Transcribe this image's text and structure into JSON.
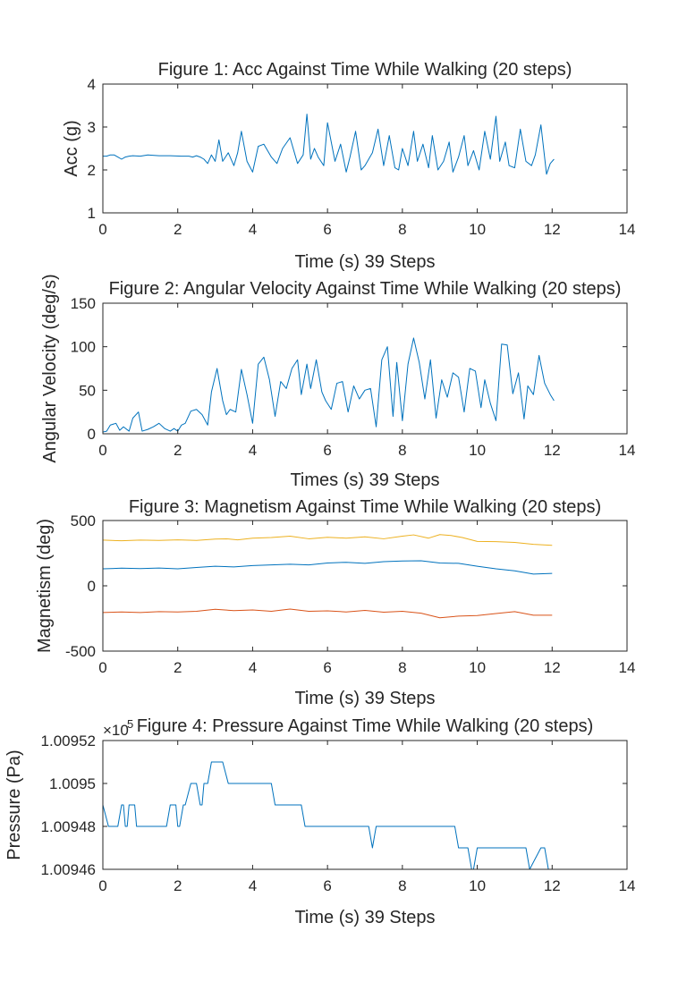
{
  "chart_data": [
    {
      "type": "line",
      "title": "Figure 1: Acc Against Time While Walking (20 steps)",
      "xlabel": "Time (s) 39 Steps",
      "ylabel": "Acc (g)",
      "xlim": [
        0,
        14
      ],
      "ylim": [
        1,
        4
      ],
      "xticks": [
        0,
        2,
        4,
        6,
        8,
        10,
        12,
        14
      ],
      "yticks": [
        1,
        2,
        3,
        4
      ],
      "xtick_labels": [
        "0",
        "2",
        "4",
        "6",
        "8",
        "10",
        "12",
        "14"
      ],
      "ytick_labels": [
        "1",
        "2",
        "3",
        "4"
      ],
      "series": [
        {
          "color": "#0072BD",
          "x": [
            0,
            0.1,
            0.2,
            0.3,
            0.4,
            0.5,
            0.6,
            0.7,
            0.8,
            1.0,
            1.2,
            1.5,
            1.8,
            2.1,
            2.3,
            2.4,
            2.5,
            2.6,
            2.7,
            2.8,
            2.9,
            3.0,
            3.1,
            3.2,
            3.35,
            3.5,
            3.6,
            3.7,
            3.85,
            4.0,
            4.15,
            4.3,
            4.5,
            4.65,
            4.8,
            5.0,
            5.2,
            5.35,
            5.45,
            5.55,
            5.65,
            5.75,
            5.9,
            6.0,
            6.2,
            6.35,
            6.5,
            6.6,
            6.75,
            6.9,
            7.0,
            7.2,
            7.35,
            7.5,
            7.65,
            7.8,
            7.9,
            8.0,
            8.15,
            8.3,
            8.4,
            8.55,
            8.7,
            8.8,
            8.95,
            9.1,
            9.25,
            9.35,
            9.5,
            9.65,
            9.75,
            9.9,
            10.05,
            10.2,
            10.35,
            10.5,
            10.6,
            10.75,
            10.85,
            11.0,
            11.15,
            11.3,
            11.45,
            11.55,
            11.7,
            11.85,
            11.95,
            12.05
          ],
          "y": [
            2.32,
            2.32,
            2.35,
            2.35,
            2.3,
            2.25,
            2.3,
            2.32,
            2.33,
            2.32,
            2.35,
            2.33,
            2.33,
            2.32,
            2.32,
            2.3,
            2.33,
            2.3,
            2.25,
            2.15,
            2.35,
            2.2,
            2.7,
            2.2,
            2.4,
            2.1,
            2.4,
            2.9,
            2.2,
            1.95,
            2.55,
            2.6,
            2.3,
            2.15,
            2.5,
            2.75,
            2.15,
            2.35,
            3.3,
            2.25,
            2.5,
            2.3,
            2.1,
            3.1,
            2.2,
            2.6,
            1.95,
            2.3,
            2.9,
            2.0,
            2.1,
            2.4,
            2.95,
            2.1,
            2.8,
            2.05,
            2.0,
            2.5,
            2.1,
            2.9,
            2.2,
            2.6,
            2.05,
            2.8,
            2.0,
            2.2,
            2.65,
            1.95,
            2.3,
            2.8,
            2.1,
            2.45,
            2.0,
            2.9,
            2.25,
            3.25,
            2.2,
            2.65,
            2.1,
            2.05,
            2.95,
            2.2,
            2.1,
            2.35,
            3.05,
            1.9,
            2.15,
            2.25
          ]
        }
      ]
    },
    {
      "type": "line",
      "title": "Figure 2: Angular Velocity Against Time While Walking (20 steps)",
      "xlabel": "Times (s) 39 Steps",
      "ylabel": "Angular Velocity (deg/s)",
      "xlim": [
        0,
        14
      ],
      "ylim": [
        0,
        150
      ],
      "xticks": [
        0,
        2,
        4,
        6,
        8,
        10,
        12,
        14
      ],
      "yticks": [
        0,
        50,
        100,
        150
      ],
      "xtick_labels": [
        "0",
        "2",
        "4",
        "6",
        "8",
        "10",
        "12",
        "14"
      ],
      "ytick_labels": [
        "0",
        "50",
        "100",
        "150"
      ],
      "series": [
        {
          "color": "#0072BD",
          "x": [
            0,
            0.1,
            0.2,
            0.35,
            0.45,
            0.55,
            0.7,
            0.8,
            0.95,
            1.05,
            1.2,
            1.35,
            1.5,
            1.65,
            1.8,
            1.9,
            2.0,
            2.1,
            2.2,
            2.35,
            2.5,
            2.65,
            2.8,
            2.9,
            3.05,
            3.2,
            3.3,
            3.4,
            3.55,
            3.7,
            3.85,
            4.0,
            4.15,
            4.3,
            4.45,
            4.6,
            4.75,
            4.9,
            5.05,
            5.2,
            5.3,
            5.45,
            5.55,
            5.7,
            5.85,
            5.95,
            6.1,
            6.25,
            6.4,
            6.55,
            6.7,
            6.85,
            7.0,
            7.15,
            7.3,
            7.45,
            7.6,
            7.75,
            7.85,
            8.0,
            8.15,
            8.3,
            8.45,
            8.6,
            8.75,
            8.9,
            9.05,
            9.2,
            9.35,
            9.5,
            9.65,
            9.8,
            9.95,
            10.1,
            10.2,
            10.35,
            10.5,
            10.65,
            10.8,
            10.95,
            11.1,
            11.25,
            11.35,
            11.5,
            11.65,
            11.8,
            11.95,
            12.05
          ],
          "y": [
            2,
            3,
            10,
            12,
            4,
            8,
            3,
            18,
            25,
            3,
            5,
            8,
            12,
            6,
            3,
            6,
            3,
            10,
            12,
            26,
            28,
            22,
            10,
            48,
            75,
            38,
            22,
            28,
            25,
            74,
            45,
            12,
            80,
            88,
            62,
            20,
            60,
            52,
            75,
            85,
            45,
            80,
            52,
            85,
            48,
            38,
            28,
            58,
            60,
            25,
            55,
            40,
            50,
            52,
            8,
            85,
            100,
            20,
            82,
            15,
            80,
            110,
            82,
            40,
            85,
            18,
            62,
            42,
            70,
            65,
            25,
            75,
            72,
            30,
            62,
            35,
            15,
            103,
            102,
            46,
            70,
            17,
            55,
            45,
            90,
            58,
            45,
            38
          ],
          "x_tail_note": ""
        }
      ]
    },
    {
      "type": "line",
      "title": "Figure 3: Magnetism Against Time While Walking (20 steps)",
      "xlabel": "Time (s) 39 Steps",
      "ylabel": "Magnetism (deg)",
      "xlim": [
        0,
        14
      ],
      "ylim": [
        -500,
        500
      ],
      "xticks": [
        0,
        2,
        4,
        6,
        8,
        10,
        12,
        14
      ],
      "yticks": [
        -500,
        0,
        500
      ],
      "xtick_labels": [
        "0",
        "2",
        "4",
        "6",
        "8",
        "10",
        "12",
        "14"
      ],
      "ytick_labels": [
        "-500",
        "0",
        "500"
      ],
      "series": [
        {
          "color": "#EDB120",
          "x": [
            0,
            0.5,
            1.0,
            1.5,
            2.0,
            2.5,
            3.0,
            3.3,
            3.6,
            4.0,
            4.5,
            5.0,
            5.5,
            6.0,
            6.5,
            7.0,
            7.5,
            8.0,
            8.3,
            8.7,
            9.0,
            9.3,
            9.6,
            10.0,
            10.5,
            11.0,
            11.5,
            12.0
          ],
          "y": [
            350,
            345,
            350,
            348,
            352,
            348,
            358,
            360,
            352,
            365,
            370,
            380,
            360,
            372,
            365,
            375,
            360,
            380,
            390,
            365,
            392,
            385,
            370,
            340,
            338,
            332,
            318,
            310
          ]
        },
        {
          "color": "#0072BD",
          "x": [
            0,
            0.5,
            1.0,
            1.5,
            2.0,
            2.5,
            3.0,
            3.5,
            4.0,
            4.5,
            5.0,
            5.5,
            6.0,
            6.5,
            7.0,
            7.5,
            8.0,
            8.5,
            9.0,
            9.5,
            10.0,
            10.5,
            11.0,
            11.5,
            12.0
          ],
          "y": [
            130,
            135,
            132,
            136,
            130,
            140,
            150,
            145,
            155,
            160,
            165,
            160,
            175,
            180,
            172,
            185,
            190,
            192,
            175,
            172,
            150,
            130,
            115,
            90,
            95
          ]
        },
        {
          "color": "#D95319",
          "x": [
            0,
            0.5,
            1.0,
            1.5,
            2.0,
            2.5,
            3.0,
            3.5,
            4.0,
            4.5,
            5.0,
            5.5,
            6.0,
            6.5,
            7.0,
            7.5,
            8.0,
            8.5,
            9.0,
            9.5,
            10.0,
            10.5,
            11.0,
            11.5,
            12.0
          ],
          "y": [
            -205,
            -200,
            -205,
            -198,
            -200,
            -195,
            -180,
            -190,
            -185,
            -195,
            -178,
            -195,
            -192,
            -200,
            -188,
            -202,
            -195,
            -210,
            -245,
            -232,
            -228,
            -212,
            -198,
            -225,
            -225
          ]
        }
      ]
    },
    {
      "type": "line",
      "title": "Figure 4: Pressure Against Time While Walking (20 steps)",
      "xlabel": "Time (s) 39 Steps",
      "ylabel": "Pressure (Pa)",
      "xlim": [
        0,
        14
      ],
      "ylim": [
        1.00946,
        1.00952
      ],
      "exponent_label": "×10",
      "exponent_power": "5",
      "xticks": [
        0,
        2,
        4,
        6,
        8,
        10,
        12,
        14
      ],
      "yticks": [
        1.00946,
        1.00948,
        1.0095,
        1.00952
      ],
      "xtick_labels": [
        "0",
        "2",
        "4",
        "6",
        "8",
        "10",
        "12",
        "14"
      ],
      "ytick_labels": [
        "1.00946",
        "1.00948",
        "1.0095",
        "1.00952"
      ],
      "series": [
        {
          "color": "#0072BD",
          "x": [
            0,
            0.15,
            0.25,
            0.4,
            0.5,
            0.55,
            0.6,
            0.65,
            0.7,
            0.8,
            0.85,
            0.9,
            0.95,
            1.0,
            1.7,
            1.8,
            1.95,
            2.0,
            2.05,
            2.15,
            2.2,
            2.35,
            2.4,
            2.5,
            2.6,
            2.65,
            2.7,
            2.8,
            2.9,
            3.0,
            3.1,
            3.2,
            3.35,
            3.45,
            4.5,
            4.6,
            5.3,
            5.4,
            7.1,
            7.2,
            7.3,
            9.4,
            9.5,
            9.75,
            9.85,
            9.9,
            10.0,
            11.3,
            11.4,
            11.7,
            11.8,
            11.9,
            12.0
          ],
          "y": [
            1.00949,
            1.00948,
            1.00948,
            1.00948,
            1.00949,
            1.00949,
            1.00948,
            1.00948,
            1.00949,
            1.00949,
            1.00949,
            1.00948,
            1.00948,
            1.00948,
            1.00948,
            1.00949,
            1.00949,
            1.00948,
            1.00948,
            1.00949,
            1.00949,
            1.0095,
            1.0095,
            1.0095,
            1.00949,
            1.00949,
            1.0095,
            1.0095,
            1.00951,
            1.00951,
            1.00951,
            1.00951,
            1.0095,
            1.0095,
            1.0095,
            1.00949,
            1.00949,
            1.00948,
            1.00948,
            1.00947,
            1.00948,
            1.00948,
            1.00947,
            1.00947,
            1.00946,
            1.00946,
            1.00947,
            1.00947,
            1.00946,
            1.00947,
            1.00947,
            1.00946,
            1.00946
          ]
        }
      ]
    }
  ]
}
